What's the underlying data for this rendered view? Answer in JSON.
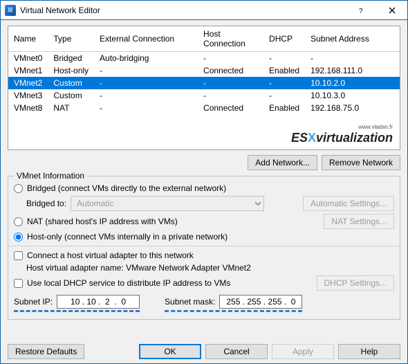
{
  "window": {
    "title": "Virtual Network Editor"
  },
  "table": {
    "headers": [
      "Name",
      "Type",
      "External Connection",
      "Host Connection",
      "DHCP",
      "Subnet Address"
    ],
    "rows": [
      {
        "name": "VMnet0",
        "type": "Bridged",
        "ext": "Auto-bridging",
        "host": "-",
        "dhcp": "-",
        "subnet": "-",
        "selected": false
      },
      {
        "name": "VMnet1",
        "type": "Host-only",
        "ext": "-",
        "host": "Connected",
        "dhcp": "Enabled",
        "subnet": "192.168.111.0",
        "selected": false
      },
      {
        "name": "VMnet2",
        "type": "Custom",
        "ext": "-",
        "host": "-",
        "dhcp": "-",
        "subnet": "10.10.2.0",
        "selected": true
      },
      {
        "name": "VMnet3",
        "type": "Custom",
        "ext": "-",
        "host": "-",
        "dhcp": "-",
        "subnet": "10.10.3.0",
        "selected": false
      },
      {
        "name": "VMnet8",
        "type": "NAT",
        "ext": "-",
        "host": "Connected",
        "dhcp": "Enabled",
        "subnet": "192.168.75.0",
        "selected": false
      }
    ]
  },
  "watermark": {
    "es": "ES",
    "x": "X",
    "virt": "virtualization",
    "sub": "www.vladan.fr"
  },
  "buttons": {
    "addNetwork": "Add Network...",
    "removeNetwork": "Remove Network",
    "automaticSettings": "Automatic Settings...",
    "natSettings": "NAT Settings...",
    "dhcpSettings": "DHCP Settings...",
    "restoreDefaults": "Restore Defaults",
    "ok": "OK",
    "cancel": "Cancel",
    "apply": "Apply",
    "help": "Help"
  },
  "group": {
    "title": "VMnet Information",
    "bridgedLabel": "Bridged (connect VMs directly to the external network)",
    "bridgedToLabel": "Bridged to:",
    "bridgedToValue": "Automatic",
    "natLabel": "NAT (shared host's IP address with VMs)",
    "hostOnlyLabel": "Host-only (connect VMs internally in a private network)",
    "connectHostLabel": "Connect a host virtual adapter to this network",
    "hostAdapterName": "Host virtual adapter name: VMware Network Adapter VMnet2",
    "useDhcpLabel": "Use local DHCP service to distribute IP address to VMs",
    "subnetIpLabel": "Subnet IP:",
    "subnetIpValue": "10 . 10 .  2  .  0",
    "subnetMaskLabel": "Subnet mask:",
    "subnetMaskValue": "255 . 255 . 255 .  0"
  },
  "state": {
    "radio": "hostonly",
    "connectHost": false,
    "useDhcp": false
  },
  "colors": {
    "selection": "#0078d7",
    "accentBorder": "#0b63a3",
    "dashed": "#2a7fd4"
  }
}
